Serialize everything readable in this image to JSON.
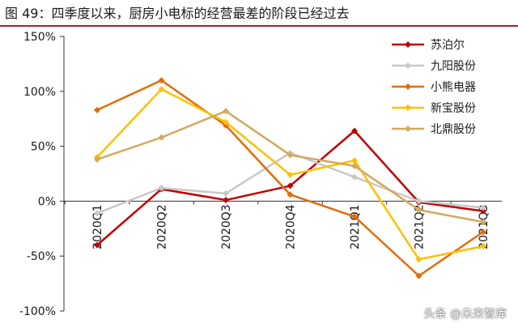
{
  "title": "图 49：四季度以来，厨房小电标的经营最差的阶段已经过去",
  "watermark": "头条 @未来智库",
  "chart_data": {
    "type": "line",
    "categories": [
      "2020Q1",
      "2020Q2",
      "2020Q3",
      "2020Q4",
      "2021Q1",
      "2021Q2",
      "2021Q3"
    ],
    "ylim": [
      -100,
      150
    ],
    "yticks": [
      -100,
      -50,
      0,
      50,
      100,
      150
    ],
    "ytick_labels": [
      "-100%",
      "-50%",
      "0%",
      "50%",
      "100%",
      "150%"
    ],
    "legend_position": "top-right",
    "grid": false,
    "series": [
      {
        "name": "苏泊尔",
        "color": "#c00000",
        "marker": "diamond",
        "values": [
          -40,
          11,
          1,
          14,
          64,
          -1,
          -9
        ]
      },
      {
        "name": "九阳股份",
        "color": "#c8c8c8",
        "marker": "diamond",
        "values": [
          -11,
          12,
          7,
          44,
          22,
          0,
          -6
        ]
      },
      {
        "name": "小熊电器",
        "color": "#e36c0a",
        "marker": "diamond",
        "values": [
          83,
          110,
          69,
          6,
          -14,
          -68,
          -28
        ]
      },
      {
        "name": "新宝股份",
        "color": "#ffc000",
        "marker": "diamond",
        "values": [
          40,
          102,
          72,
          24,
          37,
          -53,
          -41
        ]
      },
      {
        "name": "北鼎股份",
        "color": "#d4a860",
        "marker": "diamond",
        "values": [
          38,
          58,
          82,
          42,
          32,
          -8,
          -19
        ]
      }
    ]
  }
}
